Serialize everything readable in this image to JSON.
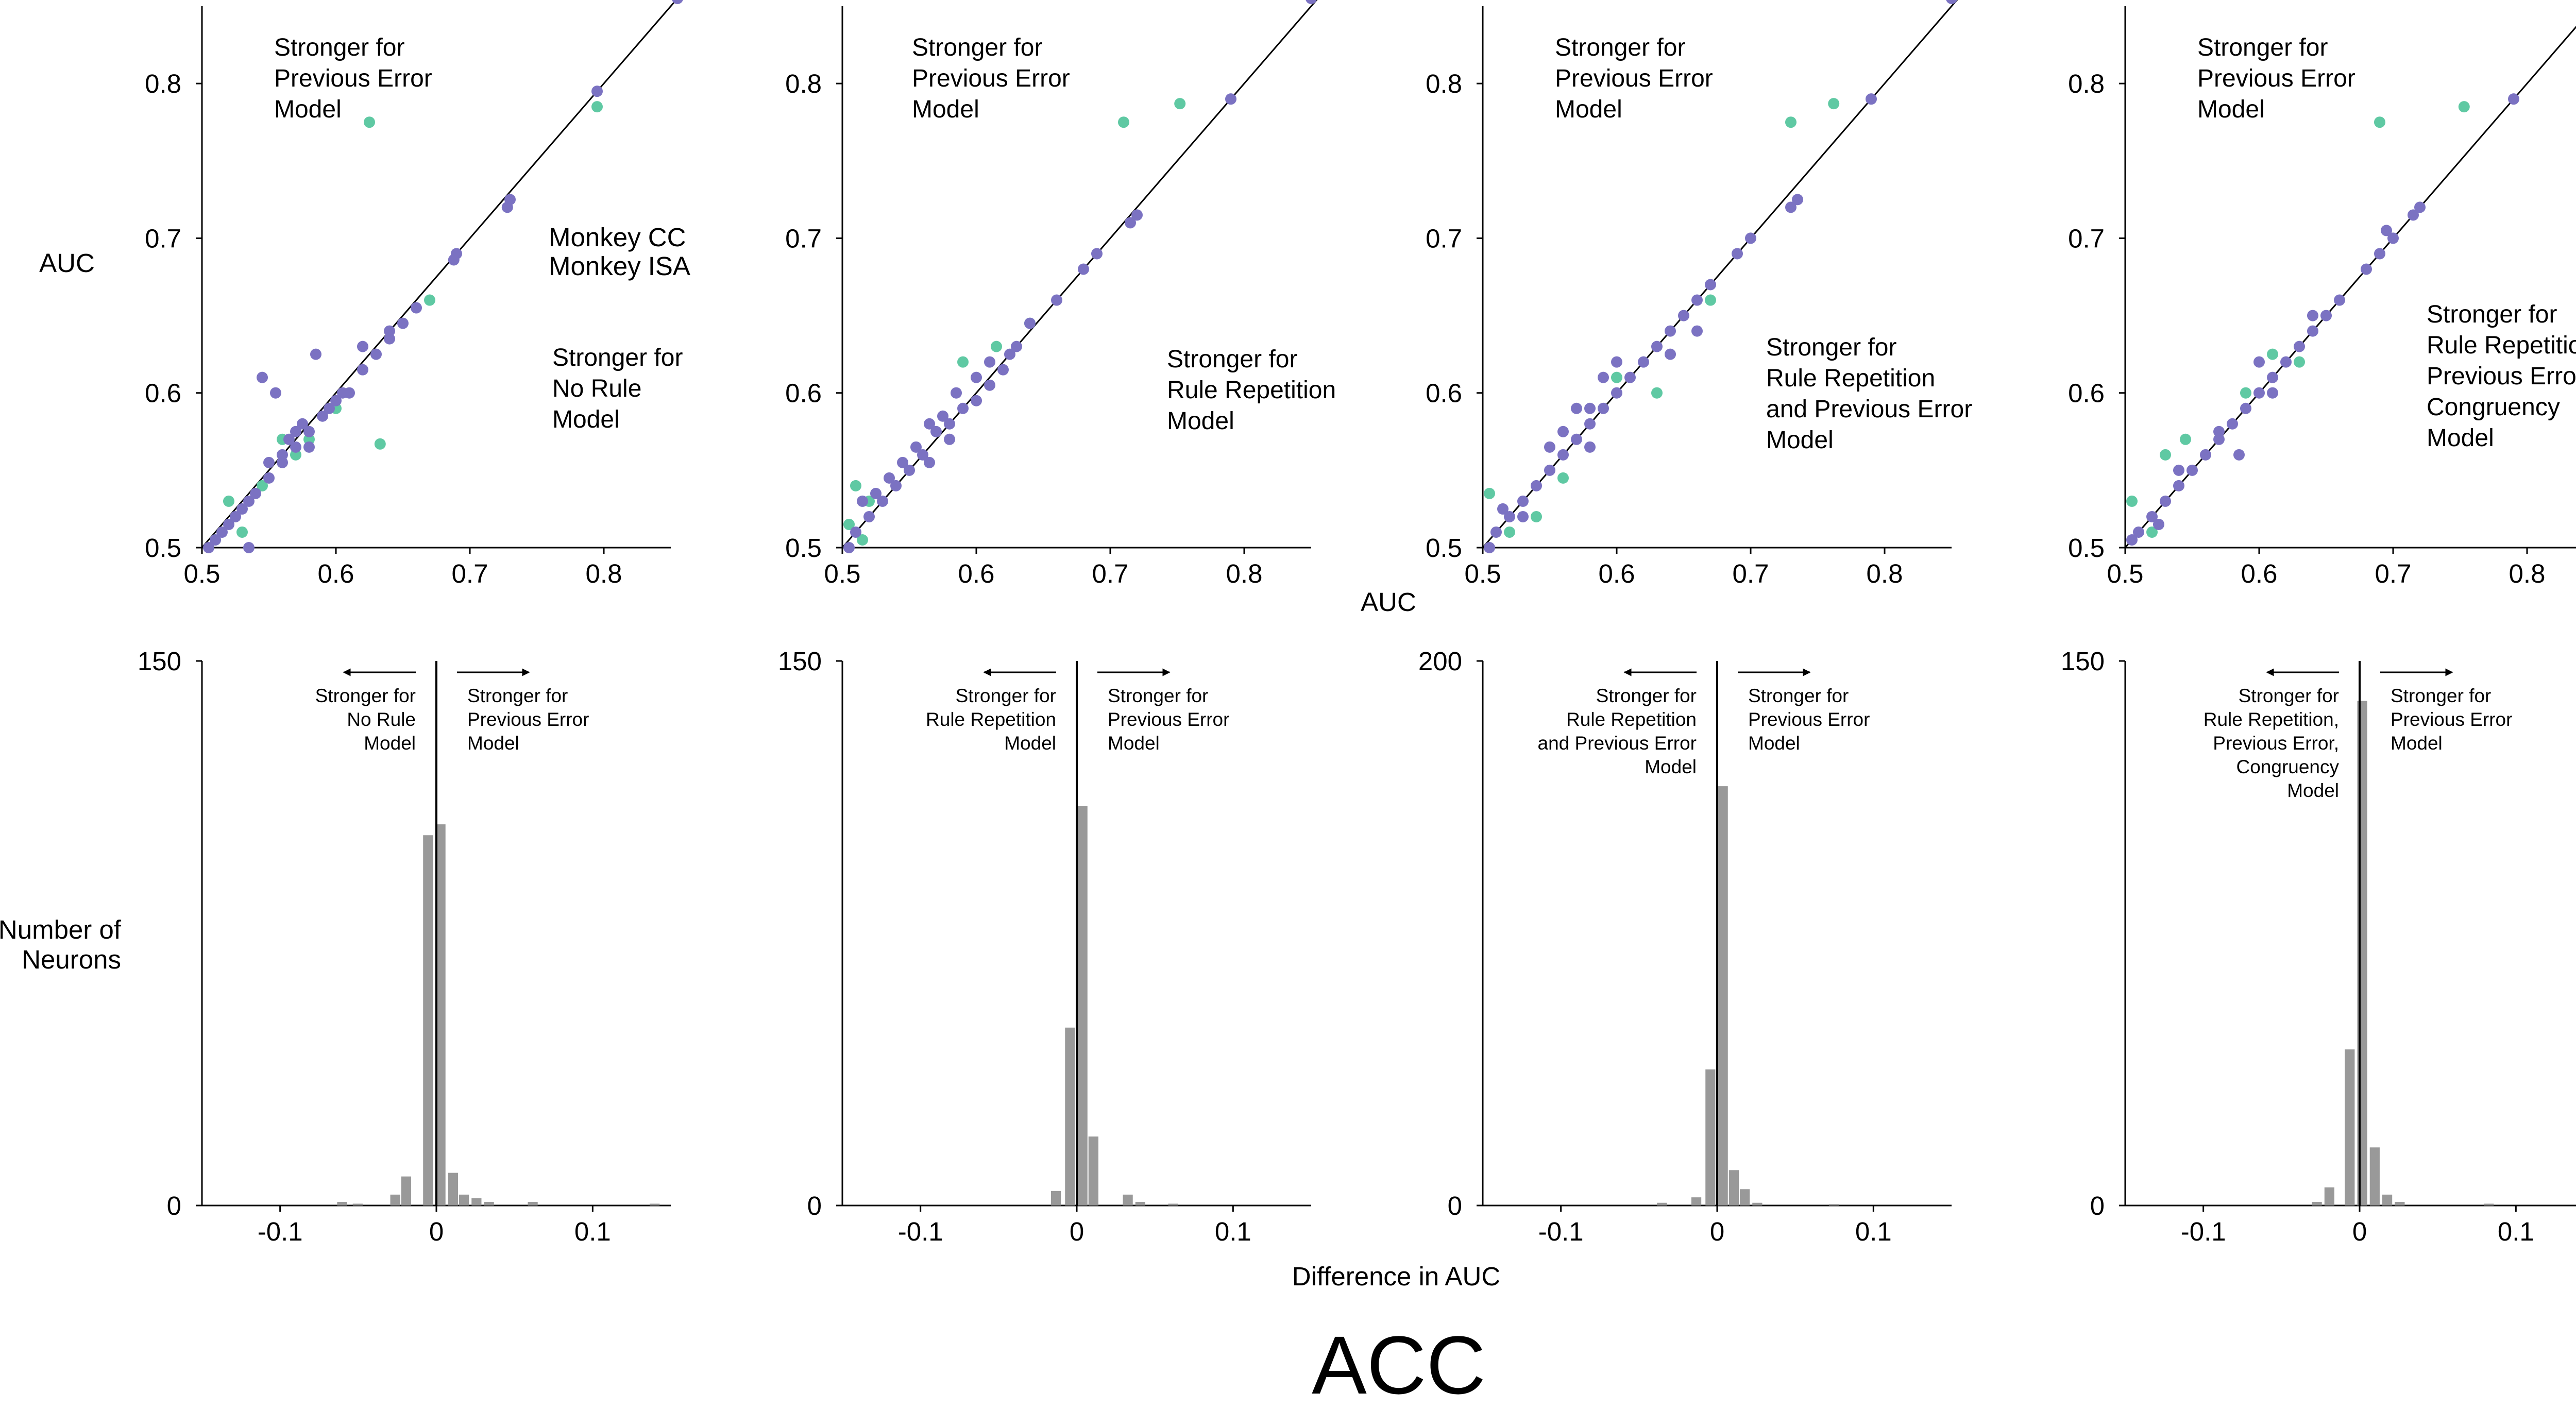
{
  "figure": {
    "title": "ACC",
    "scatter_xlabel": "AUC",
    "scatter_ylabel": "AUC",
    "hist_xlabel": "Difference in AUC",
    "hist_ylabel_line1": "Number of",
    "hist_ylabel_line2": "Neurons"
  },
  "legend": {
    "items": [
      {
        "label": "Monkey CC",
        "color": "#5fc9a3"
      },
      {
        "label": "Monkey ISA",
        "color": "#7b72c2"
      }
    ]
  },
  "colors": {
    "cc": "#5fc9a3",
    "isa": "#7b72c2",
    "bar": "#999999",
    "axis": "#000000"
  },
  "chart_data": [
    {
      "type": "scatter",
      "xlim": [
        0.5,
        0.85
      ],
      "ylim": [
        0.5,
        0.85
      ],
      "xticks": [
        "0.5",
        "0.6",
        "0.7",
        "0.8"
      ],
      "yticks": [
        "0.5",
        "0.6",
        "0.7",
        "0.8"
      ],
      "annotation_top": [
        "Stronger for",
        "Previous Error",
        "Model"
      ],
      "annotation_bottom": [
        "Stronger for",
        "No Rule",
        "Model"
      ],
      "series": [
        {
          "name": "Monkey CC",
          "points": [
            [
              0.625,
              0.775
            ],
            [
              0.795,
              0.785
            ],
            [
              0.633,
              0.567
            ],
            [
              0.58,
              0.57
            ],
            [
              0.56,
              0.57
            ],
            [
              0.545,
              0.54
            ],
            [
              0.57,
              0.56
            ],
            [
              0.52,
              0.53
            ],
            [
              0.51,
              0.505
            ],
            [
              0.6,
              0.59
            ],
            [
              0.67,
              0.66
            ],
            [
              0.53,
              0.51
            ]
          ]
        },
        {
          "name": "Monkey ISA",
          "points": [
            [
              0.855,
              0.855
            ],
            [
              0.795,
              0.795
            ],
            [
              0.73,
              0.725
            ],
            [
              0.728,
              0.72
            ],
            [
              0.69,
              0.69
            ],
            [
              0.688,
              0.686
            ],
            [
              0.66,
              0.655
            ],
            [
              0.65,
              0.645
            ],
            [
              0.64,
              0.635
            ],
            [
              0.63,
              0.625
            ],
            [
              0.62,
              0.615
            ],
            [
              0.61,
              0.6
            ],
            [
              0.6,
              0.595
            ],
            [
              0.59,
              0.585
            ],
            [
              0.58,
              0.575
            ],
            [
              0.57,
              0.565
            ],
            [
              0.56,
              0.555
            ],
            [
              0.55,
              0.545
            ],
            [
              0.54,
              0.535
            ],
            [
              0.53,
              0.525
            ],
            [
              0.52,
              0.515
            ],
            [
              0.51,
              0.505
            ],
            [
              0.505,
              0.5
            ],
            [
              0.545,
              0.61
            ],
            [
              0.555,
              0.6
            ],
            [
              0.585,
              0.625
            ],
            [
              0.605,
              0.6
            ],
            [
              0.58,
              0.565
            ],
            [
              0.565,
              0.57
            ],
            [
              0.535,
              0.53
            ],
            [
              0.525,
              0.52
            ],
            [
              0.515,
              0.51
            ],
            [
              0.575,
              0.58
            ],
            [
              0.595,
              0.59
            ],
            [
              0.535,
              0.5
            ],
            [
              0.62,
              0.63
            ],
            [
              0.64,
              0.64
            ],
            [
              0.55,
              0.555
            ],
            [
              0.56,
              0.56
            ],
            [
              0.57,
              0.575
            ]
          ]
        }
      ]
    },
    {
      "type": "scatter",
      "xlim": [
        0.5,
        0.85
      ],
      "ylim": [
        0.5,
        0.85
      ],
      "xticks": [
        "0.5",
        "0.6",
        "0.7",
        "0.8"
      ],
      "yticks": [
        "0.5",
        "0.6",
        "0.7",
        "0.8"
      ],
      "annotation_top": [
        "Stronger for",
        "Previous Error",
        "Model"
      ],
      "annotation_bottom": [
        "Stronger for",
        "Rule Repetition",
        "Model"
      ],
      "series": [
        {
          "name": "Monkey CC",
          "points": [
            [
              0.71,
              0.775
            ],
            [
              0.752,
              0.787
            ],
            [
              0.615,
              0.63
            ],
            [
              0.59,
              0.62
            ],
            [
              0.51,
              0.54
            ],
            [
              0.52,
              0.53
            ],
            [
              0.505,
              0.515
            ],
            [
              0.515,
              0.505
            ],
            [
              0.64,
              0.645
            ]
          ]
        },
        {
          "name": "Monkey ISA",
          "points": [
            [
              0.85,
              0.855
            ],
            [
              0.79,
              0.79
            ],
            [
              0.72,
              0.715
            ],
            [
              0.715,
              0.71
            ],
            [
              0.69,
              0.69
            ],
            [
              0.68,
              0.68
            ],
            [
              0.66,
              0.66
            ],
            [
              0.64,
              0.645
            ],
            [
              0.63,
              0.63
            ],
            [
              0.62,
              0.615
            ],
            [
              0.61,
              0.605
            ],
            [
              0.6,
              0.595
            ],
            [
              0.59,
              0.59
            ],
            [
              0.58,
              0.58
            ],
            [
              0.57,
              0.575
            ],
            [
              0.56,
              0.56
            ],
            [
              0.55,
              0.55
            ],
            [
              0.54,
              0.54
            ],
            [
              0.53,
              0.53
            ],
            [
              0.52,
              0.52
            ],
            [
              0.51,
              0.51
            ],
            [
              0.505,
              0.5
            ],
            [
              0.515,
              0.53
            ],
            [
              0.525,
              0.535
            ],
            [
              0.535,
              0.545
            ],
            [
              0.545,
              0.555
            ],
            [
              0.555,
              0.565
            ],
            [
              0.565,
              0.58
            ],
            [
              0.575,
              0.585
            ],
            [
              0.585,
              0.6
            ],
            [
              0.6,
              0.61
            ],
            [
              0.61,
              0.62
            ],
            [
              0.625,
              0.625
            ],
            [
              0.58,
              0.57
            ],
            [
              0.565,
              0.555
            ]
          ]
        }
      ]
    },
    {
      "type": "scatter",
      "xlim": [
        0.5,
        0.85
      ],
      "ylim": [
        0.5,
        0.85
      ],
      "xticks": [
        "0.5",
        "0.6",
        "0.7",
        "0.8"
      ],
      "yticks": [
        "0.5",
        "0.6",
        "0.7",
        "0.8"
      ],
      "annotation_top": [
        "Stronger for",
        "Previous Error",
        "Model"
      ],
      "annotation_bottom": [
        "Stronger for",
        "Rule Repetition",
        "and Previous Error",
        "Model"
      ],
      "series": [
        {
          "name": "Monkey CC",
          "points": [
            [
              0.73,
              0.775
            ],
            [
              0.762,
              0.787
            ],
            [
              0.67,
              0.66
            ],
            [
              0.63,
              0.6
            ],
            [
              0.6,
              0.61
            ],
            [
              0.505,
              0.535
            ],
            [
              0.52,
              0.51
            ],
            [
              0.54,
              0.52
            ],
            [
              0.56,
              0.545
            ]
          ]
        },
        {
          "name": "Monkey ISA",
          "points": [
            [
              0.85,
              0.855
            ],
            [
              0.79,
              0.79
            ],
            [
              0.735,
              0.725
            ],
            [
              0.73,
              0.72
            ],
            [
              0.7,
              0.7
            ],
            [
              0.69,
              0.69
            ],
            [
              0.67,
              0.67
            ],
            [
              0.66,
              0.66
            ],
            [
              0.65,
              0.65
            ],
            [
              0.64,
              0.64
            ],
            [
              0.63,
              0.63
            ],
            [
              0.62,
              0.62
            ],
            [
              0.61,
              0.61
            ],
            [
              0.6,
              0.6
            ],
            [
              0.59,
              0.59
            ],
            [
              0.58,
              0.58
            ],
            [
              0.57,
              0.57
            ],
            [
              0.56,
              0.56
            ],
            [
              0.55,
              0.55
            ],
            [
              0.54,
              0.54
            ],
            [
              0.53,
              0.53
            ],
            [
              0.52,
              0.52
            ],
            [
              0.51,
              0.51
            ],
            [
              0.505,
              0.5
            ],
            [
              0.59,
              0.61
            ],
            [
              0.57,
              0.59
            ],
            [
              0.6,
              0.62
            ],
            [
              0.58,
              0.565
            ],
            [
              0.56,
              0.575
            ],
            [
              0.55,
              0.565
            ],
            [
              0.53,
              0.52
            ],
            [
              0.515,
              0.525
            ],
            [
              0.64,
              0.625
            ],
            [
              0.66,
              0.64
            ],
            [
              0.58,
              0.59
            ]
          ]
        }
      ]
    },
    {
      "type": "scatter",
      "xlim": [
        0.5,
        0.85
      ],
      "ylim": [
        0.5,
        0.85
      ],
      "xticks": [
        "0.5",
        "0.6",
        "0.7",
        "0.8"
      ],
      "yticks": [
        "0.5",
        "0.6",
        "0.7",
        "0.8"
      ],
      "annotation_top": [
        "Stronger for",
        "Previous Error",
        "Model"
      ],
      "annotation_bottom": [
        "Stronger for",
        "Rule Repetition,",
        "Previous Error,",
        "Congruency",
        "Model"
      ],
      "series": [
        {
          "name": "Monkey CC",
          "points": [
            [
              0.69,
              0.775
            ],
            [
              0.753,
              0.785
            ],
            [
              0.63,
              0.62
            ],
            [
              0.61,
              0.625
            ],
            [
              0.59,
              0.6
            ],
            [
              0.545,
              0.57
            ],
            [
              0.53,
              0.56
            ],
            [
              0.505,
              0.53
            ],
            [
              0.52,
              0.51
            ]
          ]
        },
        {
          "name": "Monkey ISA",
          "points": [
            [
              0.85,
              0.855
            ],
            [
              0.79,
              0.79
            ],
            [
              0.72,
              0.72
            ],
            [
              0.715,
              0.715
            ],
            [
              0.7,
              0.7
            ],
            [
              0.69,
              0.69
            ],
            [
              0.68,
              0.68
            ],
            [
              0.66,
              0.66
            ],
            [
              0.65,
              0.65
            ],
            [
              0.64,
              0.64
            ],
            [
              0.63,
              0.63
            ],
            [
              0.62,
              0.62
            ],
            [
              0.61,
              0.61
            ],
            [
              0.6,
              0.6
            ],
            [
              0.59,
              0.59
            ],
            [
              0.58,
              0.58
            ],
            [
              0.57,
              0.57
            ],
            [
              0.56,
              0.56
            ],
            [
              0.55,
              0.55
            ],
            [
              0.54,
              0.54
            ],
            [
              0.53,
              0.53
            ],
            [
              0.52,
              0.52
            ],
            [
              0.51,
              0.51
            ],
            [
              0.505,
              0.505
            ],
            [
              0.6,
              0.62
            ],
            [
              0.57,
              0.575
            ],
            [
              0.585,
              0.56
            ],
            [
              0.54,
              0.55
            ],
            [
              0.525,
              0.515
            ],
            [
              0.61,
              0.6
            ],
            [
              0.695,
              0.705
            ],
            [
              0.64,
              0.65
            ]
          ]
        }
      ]
    },
    {
      "type": "bar",
      "xlim": [
        -0.15,
        0.15
      ],
      "ylim": [
        0,
        150
      ],
      "xticks": [
        "-0.1",
        "0",
        "0.1"
      ],
      "ytick_labels": [
        "0",
        "150"
      ],
      "bin_width": 0.007,
      "bins": [
        [
          -0.06,
          1
        ],
        [
          -0.05,
          0.5
        ],
        [
          -0.026,
          3
        ],
        [
          -0.019,
          8
        ],
        [
          -0.005,
          102
        ],
        [
          0.003,
          105
        ],
        [
          0.011,
          9
        ],
        [
          0.018,
          3
        ],
        [
          0.026,
          2
        ],
        [
          0.034,
          1
        ],
        [
          0.062,
          1
        ],
        [
          0.14,
          0.5
        ]
      ],
      "annotation_left": [
        "Stronger for",
        "No Rule",
        "Model"
      ],
      "annotation_right": [
        "Stronger for",
        "Previous Error",
        "Model"
      ]
    },
    {
      "type": "bar",
      "xlim": [
        -0.15,
        0.15
      ],
      "ylim": [
        0,
        150
      ],
      "xticks": [
        "-0.1",
        "0",
        "0.1"
      ],
      "ytick_labels": [
        "0",
        "150"
      ],
      "bin_width": 0.007,
      "bins": [
        [
          -0.013,
          4
        ],
        [
          -0.004,
          49
        ],
        [
          0.004,
          110
        ],
        [
          0.011,
          19
        ],
        [
          0.033,
          3
        ],
        [
          0.041,
          1
        ],
        [
          0.062,
          0.5
        ]
      ],
      "annotation_left": [
        "Stronger for",
        "Rule Repetition",
        "Model"
      ],
      "annotation_right": [
        "Stronger for",
        "Previous Error",
        "Model"
      ]
    },
    {
      "type": "bar",
      "xlim": [
        -0.15,
        0.15
      ],
      "ylim": [
        0,
        200
      ],
      "xticks": [
        "-0.1",
        "0",
        "0.1"
      ],
      "ytick_labels": [
        "0",
        "200"
      ],
      "bin_width": 0.007,
      "bins": [
        [
          -0.035,
          1
        ],
        [
          -0.013,
          3
        ],
        [
          -0.004,
          50
        ],
        [
          0.004,
          154
        ],
        [
          0.011,
          13
        ],
        [
          0.018,
          6
        ],
        [
          0.026,
          1
        ],
        [
          0.075,
          0.5
        ]
      ],
      "annotation_left": [
        "Stronger for",
        "Rule Repetition",
        "and Previous Error",
        "Model"
      ],
      "annotation_right": [
        "Stronger for",
        "Previous Error",
        "Model"
      ]
    },
    {
      "type": "bar",
      "xlim": [
        -0.15,
        0.15
      ],
      "ylim": [
        0,
        150
      ],
      "xticks": [
        "-0.1",
        "0",
        "0.1"
      ],
      "ytick_labels": [
        "0",
        "150"
      ],
      "bin_width": 0.007,
      "bins": [
        [
          -0.027,
          1
        ],
        [
          -0.019,
          5
        ],
        [
          -0.006,
          43
        ],
        [
          0.002,
          139
        ],
        [
          0.01,
          16
        ],
        [
          0.018,
          3
        ],
        [
          0.026,
          1
        ],
        [
          0.083,
          0.5
        ]
      ],
      "annotation_left": [
        "Stronger for",
        "Rule Repetition,",
        "Previous Error,",
        "Congruency",
        "Model"
      ],
      "annotation_right": [
        "Stronger for",
        "Previous Error",
        "Model"
      ]
    }
  ]
}
